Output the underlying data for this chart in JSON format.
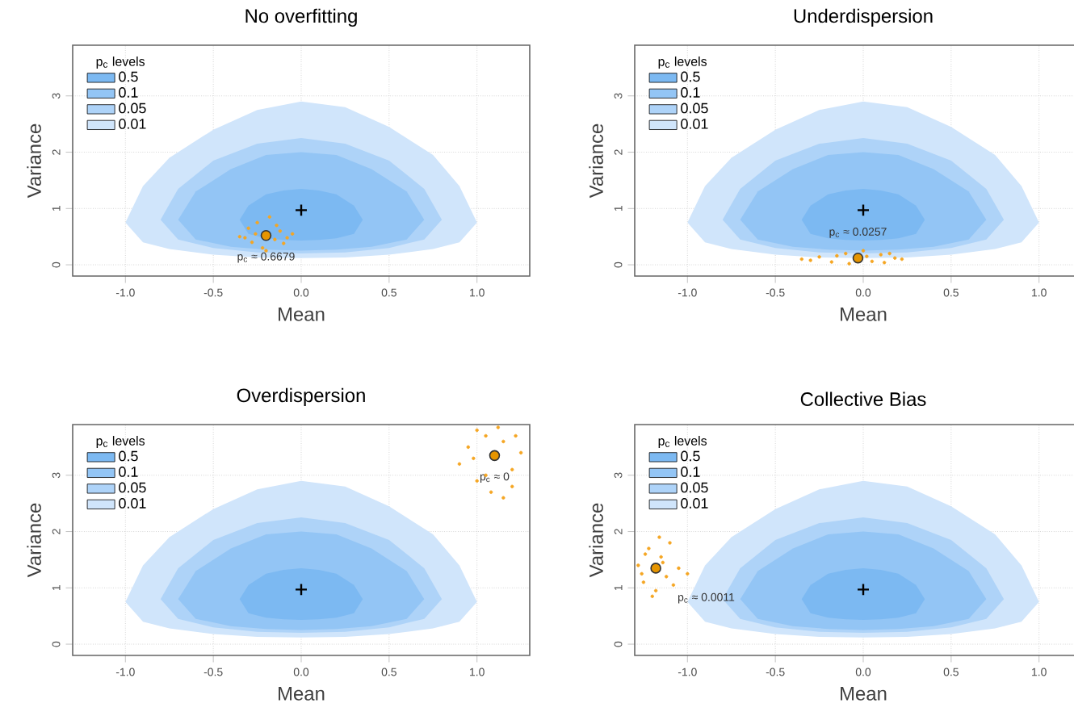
{
  "chart_data": [
    {
      "type": "area",
      "title": "No overfitting",
      "xlabel": "Mean",
      "ylabel": "Variance",
      "legend_title": "p$_{c}$ levels",
      "legend": "top left",
      "grid": true,
      "xlim": [
        -1.3,
        1.3
      ],
      "ylim": [
        -0.2,
        3.9
      ],
      "xticks": [
        {
          "value": -1,
          "label": "-1.0"
        },
        {
          "value": -0.5,
          "label": "-0.5"
        },
        {
          "value": 0,
          "label": "0.0"
        },
        {
          "value": 0.5,
          "label": "0.5"
        },
        {
          "value": 1,
          "label": "1.0"
        }
      ],
      "yticks": [
        0,
        1,
        2,
        3
      ],
      "series": [
        {
          "name": "0.01",
          "color": "#d0e5fb",
          "x": [
            -1,
            -0.9,
            -0.75,
            -0.5,
            -0.25,
            0,
            0.25,
            0.5,
            0.75,
            0.9,
            1,
            0.9,
            0.75,
            0.5,
            0.25,
            0,
            -0.25,
            -0.5,
            -0.75,
            -0.9
          ],
          "values": [
            0.75,
            1.4,
            1.9,
            2.4,
            2.75,
            2.9,
            2.8,
            2.45,
            1.95,
            1.4,
            0.75,
            0.4,
            0.28,
            0.18,
            0.13,
            0.12,
            0.13,
            0.18,
            0.28,
            0.4
          ]
        },
        {
          "name": "0.05",
          "color": "#aed3f8",
          "x": [
            -0.8,
            -0.7,
            -0.5,
            -0.25,
            0,
            0.25,
            0.5,
            0.7,
            0.8,
            0.7,
            0.5,
            0.25,
            0,
            -0.25,
            -0.5,
            -0.7
          ],
          "values": [
            0.8,
            1.35,
            1.85,
            2.15,
            2.25,
            2.15,
            1.85,
            1.35,
            0.8,
            0.45,
            0.3,
            0.22,
            0.2,
            0.22,
            0.3,
            0.45
          ]
        },
        {
          "name": "0.1",
          "color": "#93c5f5",
          "x": [
            -0.7,
            -0.6,
            -0.4,
            -0.2,
            0,
            0.2,
            0.4,
            0.6,
            0.7,
            0.6,
            0.4,
            0.2,
            0,
            -0.2,
            -0.4,
            -0.6
          ],
          "values": [
            0.8,
            1.3,
            1.7,
            1.95,
            2.0,
            1.95,
            1.7,
            1.3,
            0.8,
            0.45,
            0.32,
            0.27,
            0.25,
            0.27,
            0.32,
            0.45
          ]
        },
        {
          "name": "0.5",
          "color": "#7cb9f2",
          "x": [
            -0.35,
            -0.3,
            -0.2,
            -0.1,
            0,
            0.1,
            0.2,
            0.3,
            0.35,
            0.3,
            0.2,
            0.1,
            0,
            -0.1,
            -0.2,
            -0.3
          ],
          "values": [
            0.8,
            1.05,
            1.25,
            1.32,
            1.35,
            1.32,
            1.25,
            1.05,
            0.8,
            0.55,
            0.47,
            0.44,
            0.43,
            0.44,
            0.47,
            0.55
          ]
        },
        {
          "type": "scatter",
          "marker": "circle",
          "color": "#f5a623",
          "x": [
            -0.35,
            -0.3,
            -0.28,
            -0.25,
            -0.22,
            -0.18,
            -0.15,
            -0.12,
            -0.1,
            -0.05,
            -0.26,
            -0.14,
            -0.32,
            -0.08,
            -0.2
          ],
          "values": [
            0.5,
            0.65,
            0.4,
            0.75,
            0.3,
            0.85,
            0.45,
            0.6,
            0.38,
            0.55,
            0.55,
            0.7,
            0.48,
            0.48,
            0.25
          ]
        },
        {
          "type": "scatter",
          "marker": "circle",
          "color": "#e69500",
          "x": [
            -0.2
          ],
          "values": [
            0.52
          ]
        },
        {
          "type": "scatter",
          "marker": "cross",
          "color": "#000000",
          "x": [
            0
          ],
          "values": [
            0.97
          ]
        }
      ],
      "annotations": [
        {
          "text": "p$_{c}$ ≈ 0.6679",
          "x": -0.2,
          "y": 0.52
        }
      ]
    },
    {
      "type": "area",
      "title": "Underdispersion",
      "xlabel": "Mean",
      "ylabel": "Variance",
      "legend_title": "p$_{c}$ levels",
      "legend": "top left",
      "grid": true,
      "xlim": [
        -1.3,
        1.3
      ],
      "ylim": [
        -0.2,
        3.9
      ],
      "xticks": [
        {
          "value": -1,
          "label": "-1.0"
        },
        {
          "value": -0.5,
          "label": "-0.5"
        },
        {
          "value": 0,
          "label": "0.0"
        },
        {
          "value": 0.5,
          "label": "0.5"
        },
        {
          "value": 1,
          "label": "1.0"
        }
      ],
      "yticks": [
        0,
        1,
        2,
        3
      ],
      "series": [
        {
          "name": "0.01",
          "color": "#d0e5fb",
          "x": [
            -1,
            -0.9,
            -0.75,
            -0.5,
            -0.25,
            0,
            0.25,
            0.5,
            0.75,
            0.9,
            1,
            0.9,
            0.75,
            0.5,
            0.25,
            0,
            -0.25,
            -0.5,
            -0.75,
            -0.9
          ],
          "values": [
            0.75,
            1.4,
            1.9,
            2.4,
            2.75,
            2.9,
            2.8,
            2.45,
            1.95,
            1.4,
            0.75,
            0.4,
            0.28,
            0.18,
            0.13,
            0.12,
            0.13,
            0.18,
            0.28,
            0.4
          ]
        },
        {
          "name": "0.05",
          "color": "#aed3f8",
          "x": [
            -0.8,
            -0.7,
            -0.5,
            -0.25,
            0,
            0.25,
            0.5,
            0.7,
            0.8,
            0.7,
            0.5,
            0.25,
            0,
            -0.25,
            -0.5,
            -0.7
          ],
          "values": [
            0.8,
            1.35,
            1.85,
            2.15,
            2.25,
            2.15,
            1.85,
            1.35,
            0.8,
            0.45,
            0.3,
            0.22,
            0.2,
            0.22,
            0.3,
            0.45
          ]
        },
        {
          "name": "0.1",
          "color": "#93c5f5",
          "x": [
            -0.7,
            -0.6,
            -0.4,
            -0.2,
            0,
            0.2,
            0.4,
            0.6,
            0.7,
            0.6,
            0.4,
            0.2,
            0,
            -0.2,
            -0.4,
            -0.6
          ],
          "values": [
            0.8,
            1.3,
            1.7,
            1.95,
            2.0,
            1.95,
            1.7,
            1.3,
            0.8,
            0.45,
            0.32,
            0.27,
            0.25,
            0.27,
            0.32,
            0.45
          ]
        },
        {
          "name": "0.5",
          "color": "#7cb9f2",
          "x": [
            -0.35,
            -0.3,
            -0.2,
            -0.1,
            0,
            0.1,
            0.2,
            0.3,
            0.35,
            0.3,
            0.2,
            0.1,
            0,
            -0.1,
            -0.2,
            -0.3
          ],
          "values": [
            0.8,
            1.05,
            1.25,
            1.32,
            1.35,
            1.32,
            1.25,
            1.05,
            0.8,
            0.55,
            0.47,
            0.44,
            0.43,
            0.44,
            0.47,
            0.55
          ]
        },
        {
          "type": "scatter",
          "marker": "circle",
          "color": "#f5a623",
          "x": [
            -0.35,
            -0.25,
            -0.18,
            -0.1,
            -0.05,
            0,
            0.05,
            0.1,
            0.18,
            0.22,
            -0.3,
            -0.15,
            0.12,
            0.02,
            -0.08,
            0.15
          ],
          "values": [
            0.1,
            0.14,
            0.05,
            0.2,
            null,
            0.25,
            0.06,
            0.18,
            0.12,
            0.1,
            0.08,
            0.16,
            0.04,
            0.15,
            0.02,
            0.2
          ]
        },
        {
          "type": "scatter",
          "marker": "circle",
          "color": "#e69500",
          "x": [
            -0.03
          ],
          "values": [
            0.12
          ]
        },
        {
          "type": "scatter",
          "marker": "cross",
          "color": "#000000",
          "x": [
            0
          ],
          "values": [
            0.97
          ]
        }
      ],
      "annotations": [
        {
          "text": "p$_{c}$ ≈ 0.0257",
          "x": -0.03,
          "y": 0.12
        }
      ]
    },
    {
      "type": "area",
      "title": "Overdispersion",
      "xlabel": "Mean",
      "ylabel": "Variance",
      "legend_title": "p$_{c}$ levels",
      "legend": "top left",
      "grid": true,
      "xlim": [
        -1.3,
        1.3
      ],
      "ylim": [
        -0.2,
        3.9
      ],
      "xticks": [
        {
          "value": -1,
          "label": "-1.0"
        },
        {
          "value": -0.5,
          "label": "-0.5"
        },
        {
          "value": 0,
          "label": "0.0"
        },
        {
          "value": 0.5,
          "label": "0.5"
        },
        {
          "value": 1,
          "label": "1.0"
        }
      ],
      "yticks": [
        0,
        1,
        2,
        3
      ],
      "series": [
        {
          "name": "0.01",
          "color": "#d0e5fb",
          "x": [
            -1,
            -0.9,
            -0.75,
            -0.5,
            -0.25,
            0,
            0.25,
            0.5,
            0.75,
            0.9,
            1,
            0.9,
            0.75,
            0.5,
            0.25,
            0,
            -0.25,
            -0.5,
            -0.75,
            -0.9
          ],
          "values": [
            0.75,
            1.4,
            1.9,
            2.4,
            2.75,
            2.9,
            2.8,
            2.45,
            1.95,
            1.4,
            0.75,
            0.4,
            0.28,
            0.18,
            0.13,
            0.12,
            0.13,
            0.18,
            0.28,
            0.4
          ]
        },
        {
          "name": "0.05",
          "color": "#aed3f8",
          "x": [
            -0.8,
            -0.7,
            -0.5,
            -0.25,
            0,
            0.25,
            0.5,
            0.7,
            0.8,
            0.7,
            0.5,
            0.25,
            0,
            -0.25,
            -0.5,
            -0.7
          ],
          "values": [
            0.8,
            1.35,
            1.85,
            2.15,
            2.25,
            2.15,
            1.85,
            1.35,
            0.8,
            0.45,
            0.3,
            0.22,
            0.2,
            0.22,
            0.3,
            0.45
          ]
        },
        {
          "name": "0.1",
          "color": "#93c5f5",
          "x": [
            -0.7,
            -0.6,
            -0.4,
            -0.2,
            0,
            0.2,
            0.4,
            0.6,
            0.7,
            0.6,
            0.4,
            0.2,
            0,
            -0.2,
            -0.4,
            -0.6
          ],
          "values": [
            0.8,
            1.3,
            1.7,
            1.95,
            2.0,
            1.95,
            1.7,
            1.3,
            0.8,
            0.45,
            0.32,
            0.27,
            0.25,
            0.27,
            0.32,
            0.45
          ]
        },
        {
          "name": "0.5",
          "color": "#7cb9f2",
          "x": [
            -0.35,
            -0.3,
            -0.2,
            -0.1,
            0,
            0.1,
            0.2,
            0.3,
            0.35,
            0.3,
            0.2,
            0.1,
            0,
            -0.1,
            -0.2,
            -0.3
          ],
          "values": [
            0.8,
            1.05,
            1.25,
            1.32,
            1.35,
            1.32,
            1.25,
            1.05,
            0.8,
            0.55,
            0.47,
            0.44,
            0.43,
            0.44,
            0.47,
            0.55
          ]
        },
        {
          "type": "scatter",
          "marker": "circle",
          "color": "#f5a623",
          "x": [
            0.9,
            0.95,
            1.0,
            1.05,
            1.15,
            1.2,
            1.25,
            1.0,
            1.05,
            1.15,
            1.2,
            1.12,
            0.98,
            1.08,
            1.22
          ],
          "values": [
            3.2,
            3.5,
            2.9,
            3.7,
            2.6,
            3.1,
            3.4,
            3.8,
            3.0,
            3.6,
            2.8,
            3.85,
            3.3,
            2.7,
            3.7
          ]
        },
        {
          "type": "scatter",
          "marker": "circle",
          "color": "#e69500",
          "x": [
            1.1
          ],
          "values": [
            3.35
          ]
        },
        {
          "type": "scatter",
          "marker": "cross",
          "color": "#000000",
          "x": [
            0
          ],
          "values": [
            0.97
          ]
        }
      ],
      "annotations": [
        {
          "text": "p$_{c}$ ≈ 0",
          "x": 1.1,
          "y": 3.35
        }
      ]
    },
    {
      "type": "area",
      "title": "Collective Bias",
      "xlabel": "Mean",
      "ylabel": "Variance",
      "legend_title": "p$_{c}$ levels",
      "legend": "top left",
      "grid": true,
      "xlim": [
        -1.3,
        1.3
      ],
      "ylim": [
        -0.2,
        3.9
      ],
      "xticks": [
        {
          "value": -1,
          "label": "-1.0"
        },
        {
          "value": -0.5,
          "label": "-0.5"
        },
        {
          "value": 0,
          "label": "0.0"
        },
        {
          "value": 0.5,
          "label": "0.5"
        },
        {
          "value": 1,
          "label": "1.0"
        }
      ],
      "yticks": [
        0,
        1,
        2,
        3
      ],
      "series": [
        {
          "name": "0.01",
          "color": "#d0e5fb",
          "x": [
            -1,
            -0.9,
            -0.75,
            -0.5,
            -0.25,
            0,
            0.25,
            0.5,
            0.75,
            0.9,
            1,
            0.9,
            0.75,
            0.5,
            0.25,
            0,
            -0.25,
            -0.5,
            -0.75,
            -0.9
          ],
          "values": [
            0.75,
            1.4,
            1.9,
            2.4,
            2.75,
            2.9,
            2.8,
            2.45,
            1.95,
            1.4,
            0.75,
            0.4,
            0.28,
            0.18,
            0.13,
            0.12,
            0.13,
            0.18,
            0.28,
            0.4
          ]
        },
        {
          "name": "0.05",
          "color": "#aed3f8",
          "x": [
            -0.8,
            -0.7,
            -0.5,
            -0.25,
            0,
            0.25,
            0.5,
            0.7,
            0.8,
            0.7,
            0.5,
            0.25,
            0,
            -0.25,
            -0.5,
            -0.7
          ],
          "values": [
            0.8,
            1.35,
            1.85,
            2.15,
            2.25,
            2.15,
            1.85,
            1.35,
            0.8,
            0.45,
            0.3,
            0.22,
            0.2,
            0.22,
            0.3,
            0.45
          ]
        },
        {
          "name": "0.1",
          "color": "#93c5f5",
          "x": [
            -0.7,
            -0.6,
            -0.4,
            -0.2,
            0,
            0.2,
            0.4,
            0.6,
            0.7,
            0.6,
            0.4,
            0.2,
            0,
            -0.2,
            -0.4,
            -0.6
          ],
          "values": [
            0.8,
            1.3,
            1.7,
            1.95,
            2.0,
            1.95,
            1.7,
            1.3,
            0.8,
            0.45,
            0.32,
            0.27,
            0.25,
            0.27,
            0.32,
            0.45
          ]
        },
        {
          "name": "0.5",
          "color": "#7cb9f2",
          "x": [
            -0.35,
            -0.3,
            -0.2,
            -0.1,
            0,
            0.1,
            0.2,
            0.3,
            0.35,
            0.3,
            0.2,
            0.1,
            0,
            -0.1,
            -0.2,
            -0.3
          ],
          "values": [
            0.8,
            1.05,
            1.25,
            1.32,
            1.35,
            1.32,
            1.25,
            1.05,
            0.8,
            0.55,
            0.47,
            0.44,
            0.43,
            0.44,
            0.47,
            0.55
          ]
        },
        {
          "type": "scatter",
          "marker": "circle",
          "color": "#f5a623",
          "x": [
            -1.28,
            -1.25,
            -1.22,
            -1.2,
            -1.18,
            -1.15,
            -1.12,
            -1.1,
            -1.05,
            -1.0,
            -1.24,
            -1.16,
            -1.08,
            -1.2,
            -1.14,
            -1.26
          ],
          "values": [
            1.4,
            1.1,
            1.7,
            null,
            0.95,
            1.55,
            1.2,
            1.8,
            1.35,
            1.25,
            1.6,
            1.9,
            1.05,
            0.85,
            1.45,
            1.25
          ]
        },
        {
          "type": "scatter",
          "marker": "circle",
          "color": "#e69500",
          "x": [
            -1.18
          ],
          "values": [
            1.35
          ]
        },
        {
          "type": "scatter",
          "marker": "cross",
          "color": "#000000",
          "x": [
            0
          ],
          "values": [
            0.97
          ]
        }
      ],
      "annotations": [
        {
          "text": "p$_{c}$ ≈ 0.0011",
          "x": -1.18,
          "y": 1.35
        }
      ]
    }
  ]
}
